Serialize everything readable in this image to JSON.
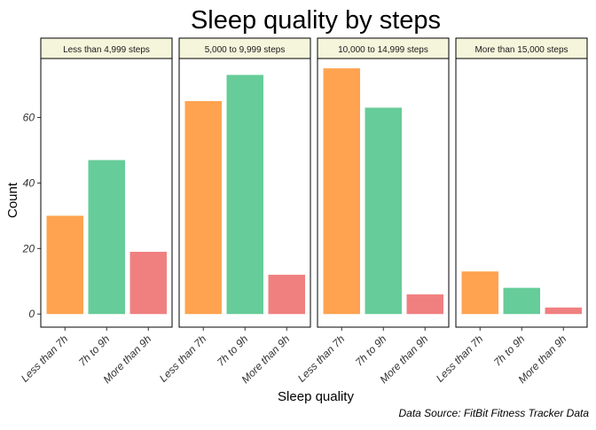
{
  "chart_data": {
    "type": "bar",
    "title": "Sleep quality by steps",
    "xlabel": "Sleep quality",
    "ylabel": "Count",
    "caption": "Data Source: FitBit Fitness Tracker Data",
    "ylim": [
      -4,
      78
    ],
    "yticks": [
      0,
      20,
      40,
      60
    ],
    "grid": false,
    "legend": "none",
    "categories": [
      "Less than 7h",
      "7h to 9h",
      "More than 9h"
    ],
    "colors": [
      "#FFA350",
      "#66CC99",
      "#F08080"
    ],
    "strip_fill": "#F5F5DC",
    "panels": [
      {
        "name": "Less than 4,999 steps",
        "values": [
          30,
          47,
          19
        ]
      },
      {
        "name": "5,000 to 9,999 steps",
        "values": [
          65,
          73,
          12
        ]
      },
      {
        "name": "10,000 to 14,999 steps",
        "values": [
          75,
          63,
          6
        ]
      },
      {
        "name": "More than 15,000 steps",
        "values": [
          13,
          8,
          2
        ]
      }
    ]
  }
}
